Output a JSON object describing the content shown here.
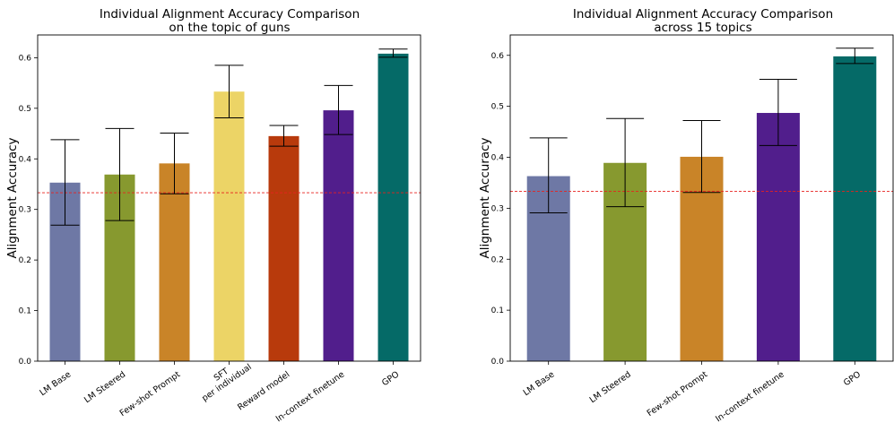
{
  "chart_data": [
    {
      "type": "bar",
      "title": "Individual Alignment Accuracy Comparison",
      "subtitle": "on the topic of guns",
      "xlabel": "",
      "ylabel": "Alignment Accuracy",
      "ylim": [
        0,
        0.645
      ],
      "yticks": [
        "0.0",
        "0.1",
        "0.2",
        "0.3",
        "0.4",
        "0.5",
        "0.6"
      ],
      "categories": [
        "LM Base",
        "LM Steered",
        "Few-shot Prompt",
        "SFT\nper individual",
        "Reward model",
        "In-context finetune",
        "GPO"
      ],
      "values": [
        0.353,
        0.369,
        0.391,
        0.533,
        0.445,
        0.496,
        0.608
      ],
      "error_low": [
        0.269,
        0.278,
        0.331,
        0.481,
        0.425,
        0.448,
        0.601
      ],
      "error_high": [
        0.438,
        0.46,
        0.451,
        0.585,
        0.466,
        0.545,
        0.617
      ],
      "colors": [
        "#6e78a5",
        "#87992f",
        "#c98428",
        "#ecd466",
        "#b83a0c",
        "#511e8c",
        "#056a67"
      ],
      "reference_line": 0.333,
      "reference_color": "#e8211e",
      "grid": false
    },
    {
      "type": "bar",
      "title": "Individual Alignment Accuracy Comparison",
      "subtitle": "across 15 topics",
      "xlabel": "",
      "ylabel": "Alignment Accuracy",
      "ylim": [
        0,
        0.64
      ],
      "yticks": [
        "0.0",
        "0.1",
        "0.2",
        "0.3",
        "0.4",
        "0.5",
        "0.6"
      ],
      "categories": [
        "LM Base",
        "LM Steered",
        "Few-shot Prompt",
        "In-context finetune",
        "GPO"
      ],
      "values": [
        0.363,
        0.389,
        0.401,
        0.487,
        0.598
      ],
      "error_low": [
        0.291,
        0.303,
        0.331,
        0.423,
        0.584
      ],
      "error_high": [
        0.438,
        0.476,
        0.472,
        0.553,
        0.614
      ],
      "colors": [
        "#6e78a5",
        "#87992f",
        "#c98428",
        "#511e8c",
        "#056a67"
      ],
      "reference_line": 0.333,
      "reference_color": "#e8211e",
      "grid": false
    }
  ]
}
